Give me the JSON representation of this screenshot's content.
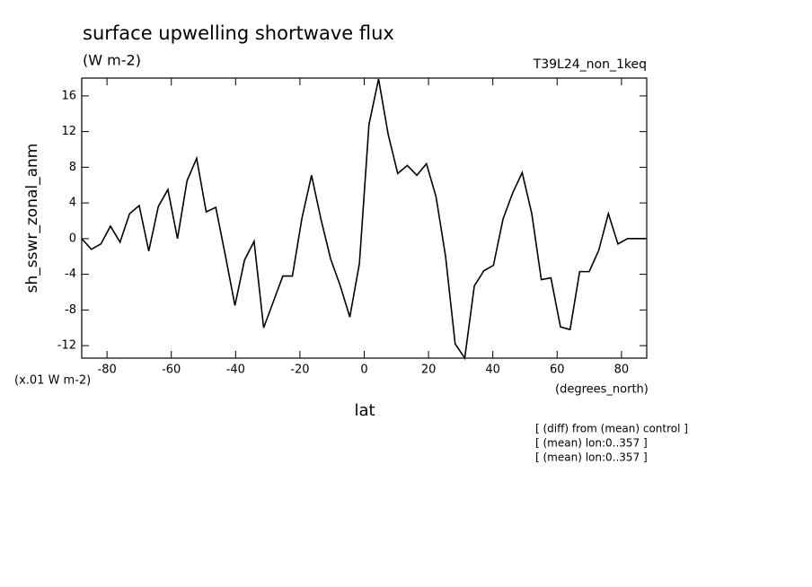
{
  "chart_data": {
    "type": "line",
    "title": "surface upwelling shortwave flux",
    "units": "(W m-2)",
    "dataset": "T39L24_non_1keq",
    "y_label": "sh_sswr_zonal_anm",
    "y_scale_note": "(x.01 W m-2)",
    "x_units": "(degrees_north)",
    "x_label": "lat",
    "notes": [
      "[ (diff) from (mean) control ]",
      "[ (mean) lon:0..357 ]",
      "[ (mean) lon:0..357 ]"
    ],
    "x": [
      -87.86,
      -84.88,
      -81.9,
      -78.93,
      -75.95,
      -72.97,
      -69.99,
      -67.01,
      -64.04,
      -61.06,
      -58.08,
      -55.1,
      -52.12,
      -49.15,
      -46.17,
      -43.19,
      -40.21,
      -37.23,
      -34.26,
      -31.28,
      -28.3,
      -25.32,
      -22.34,
      -19.37,
      -16.39,
      -13.41,
      -10.43,
      -7.45,
      -4.48,
      -1.5,
      1.48,
      4.46,
      7.44,
      10.41,
      13.39,
      16.37,
      19.35,
      22.33,
      25.3,
      28.28,
      31.26,
      34.24,
      37.22,
      40.19,
      43.17,
      46.15,
      49.13,
      52.11,
      55.08,
      58.06,
      61.04,
      64.02,
      67.0,
      69.97,
      72.95,
      75.93,
      78.91,
      81.89,
      84.86,
      87.84
    ],
    "values": [
      0,
      -1.2,
      -0.6,
      1.4,
      -0.4,
      2.8,
      3.7,
      -1.4,
      3.6,
      5.5,
      0,
      6.5,
      9,
      3,
      3.5,
      -1.9,
      -7.5,
      -2.4,
      -0.3,
      -10,
      -7.1,
      -4.2,
      -4.2,
      2.3,
      7.1,
      2.1,
      -2.3,
      -5.3,
      -8.8,
      -2.8,
      12.8,
      17.9,
      11.7,
      7.3,
      8.2,
      7.1,
      8.4,
      4.7,
      -2,
      -11.8,
      -13.4,
      -5.3,
      -3.6,
      -3,
      2.2,
      5.1,
      7.4,
      2.8,
      -4.6,
      -4.4,
      -9.9,
      -10.2,
      -3.7,
      -3.7,
      -1.3,
      2.8,
      -0.6,
      0,
      0,
      0
    ],
    "color": "#000000",
    "xlim": [
      -87.86,
      87.86
    ],
    "xticks": [
      -80,
      -60,
      -40,
      -20,
      0,
      20,
      40,
      60,
      80
    ],
    "ylim": [
      -13.4,
      18
    ],
    "yticks": [
      -12,
      -8,
      -4,
      0,
      4,
      8,
      12,
      16
    ]
  }
}
